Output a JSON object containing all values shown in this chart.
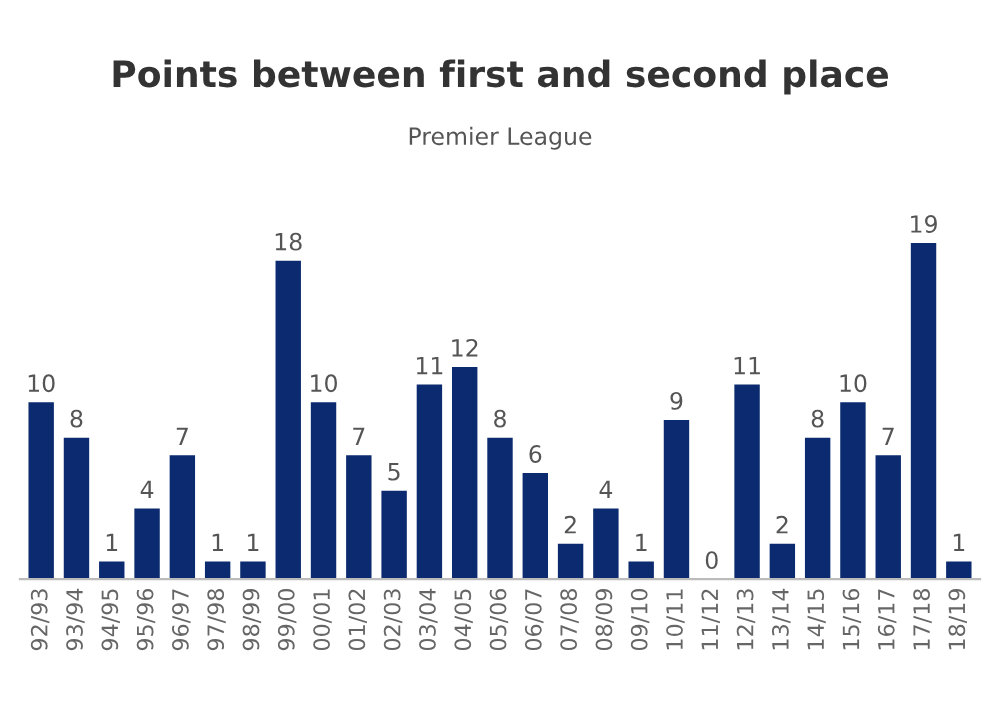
{
  "chart_data": {
    "type": "bar",
    "title": "Points between first and second place",
    "subtitle": "Premier League",
    "categories": [
      "92/93",
      "93/94",
      "94/95",
      "95/96",
      "96/97",
      "97/98",
      "98/99",
      "99/00",
      "00/01",
      "01/02",
      "02/03",
      "03/04",
      "04/05",
      "05/06",
      "06/07",
      "07/08",
      "08/09",
      "09/10",
      "10/11",
      "11/12",
      "12/13",
      "13/14",
      "14/15",
      "15/16",
      "16/17",
      "17/18",
      "18/19"
    ],
    "values": [
      10,
      8,
      1,
      4,
      7,
      1,
      1,
      18,
      10,
      7,
      5,
      11,
      12,
      8,
      6,
      2,
      4,
      1,
      9,
      0,
      11,
      2,
      8,
      10,
      7,
      19,
      1
    ],
    "color": "#0b2a6f",
    "data_labels": true,
    "grid": false,
    "legend": false
  }
}
